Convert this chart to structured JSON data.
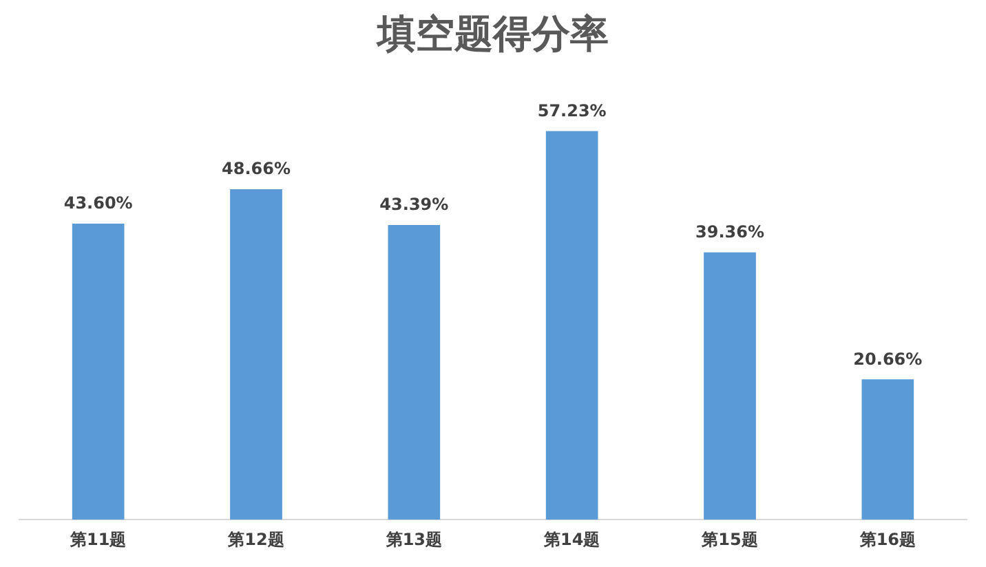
{
  "chart_data": {
    "type": "bar",
    "title": "填空题得分率",
    "categories": [
      "第11题",
      "第12题",
      "第13题",
      "第14题",
      "第15题",
      "第16题"
    ],
    "values": [
      43.6,
      48.66,
      43.39,
      57.23,
      39.36,
      20.66
    ],
    "value_labels": [
      "43.60%",
      "48.66%",
      "43.39%",
      "57.23%",
      "39.36%",
      "20.66%"
    ],
    "color": "#5b9bd5",
    "grid": false,
    "legend": false,
    "tick_labels": "x"
  }
}
